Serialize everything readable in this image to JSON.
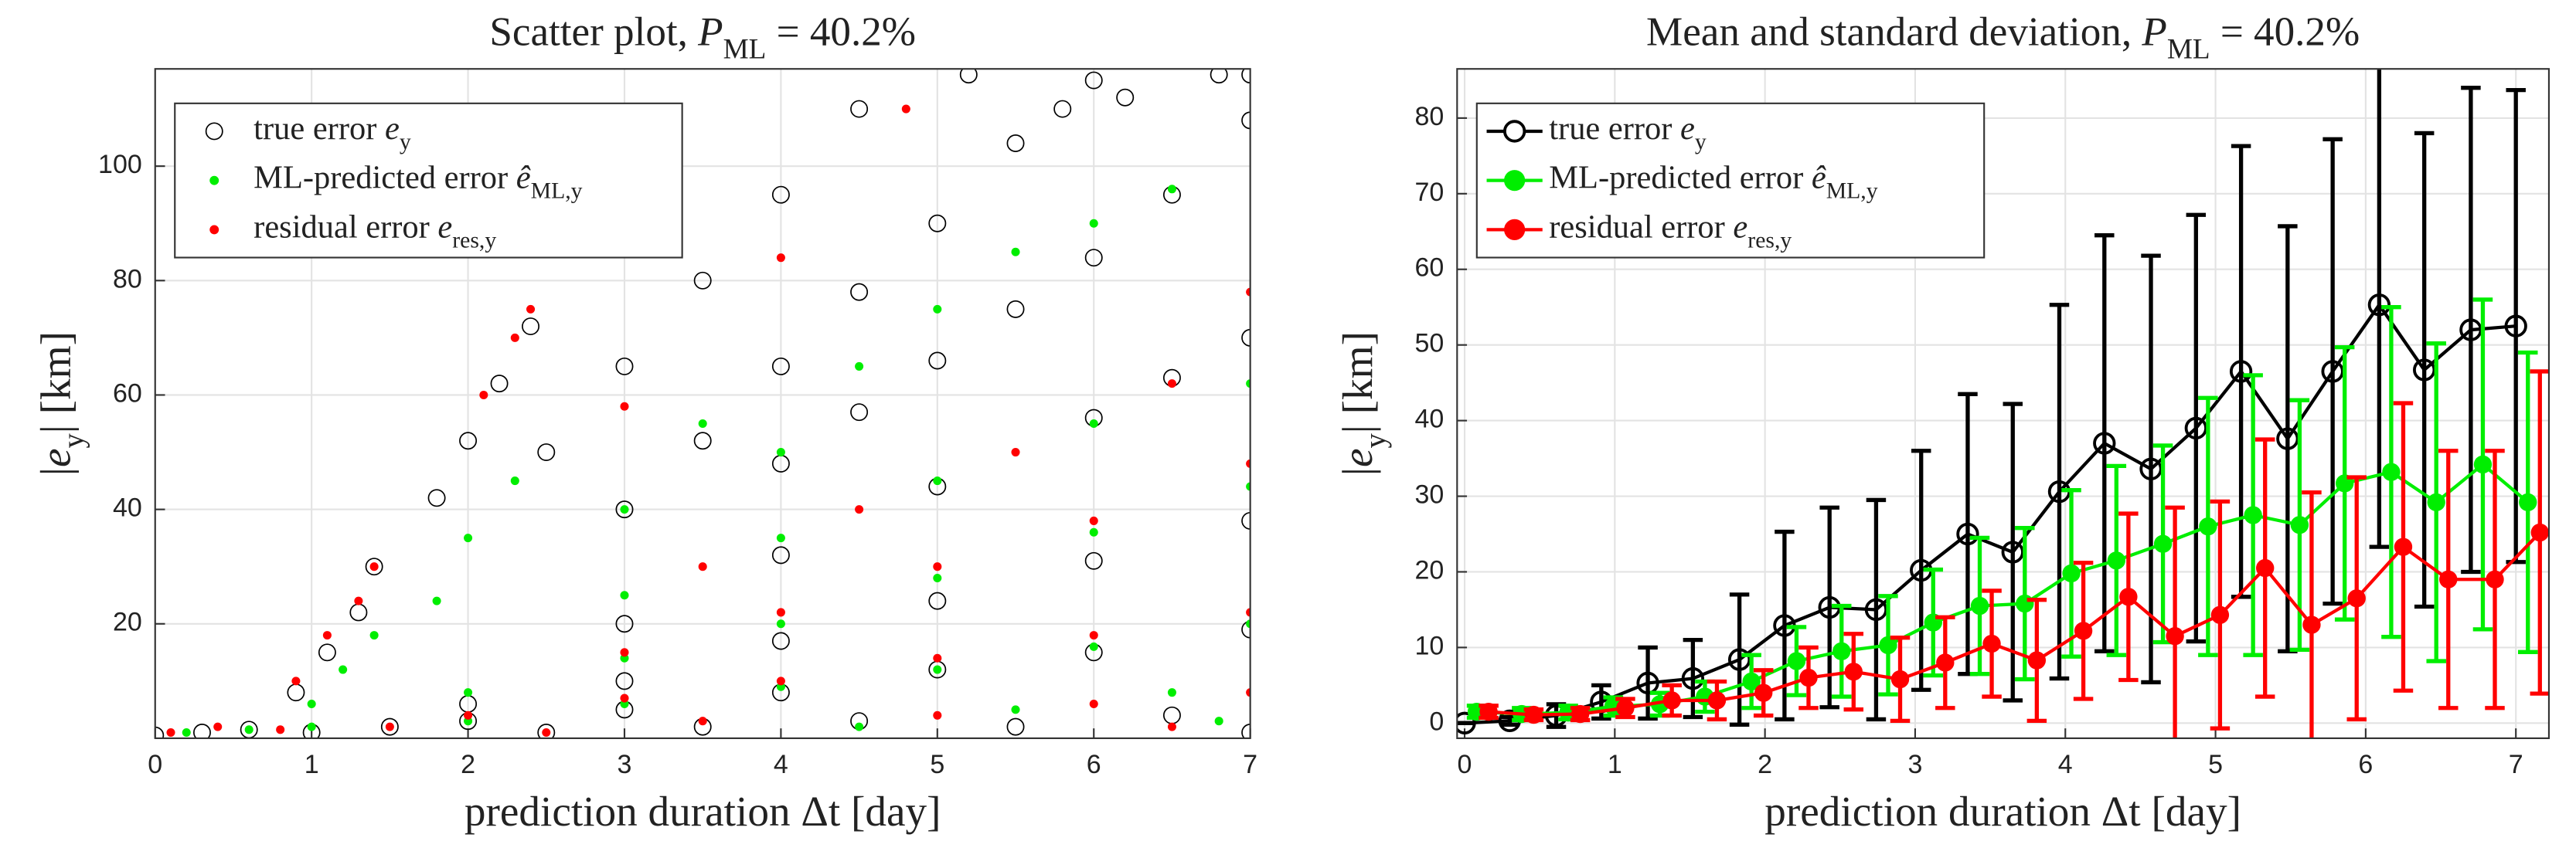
{
  "chart_data": [
    {
      "type": "scatter",
      "title": "Scatter plot, P_{ML} = 40.2%",
      "x_label": "prediction duration Δt [day]",
      "y_label": "|e_{y}| [km]",
      "xlim": [
        0,
        7
      ],
      "ylim": [
        0,
        117
      ],
      "xticks": [
        0,
        1,
        2,
        3,
        4,
        5,
        6,
        7
      ],
      "yticks": [
        20,
        40,
        60,
        80,
        100
      ],
      "grid": true,
      "legend": "upper left",
      "series": [
        {
          "name": "true error e_{y}",
          "color": "#000000",
          "marker": "circle-open",
          "x": [
            1.8,
            2.0,
            2.2,
            2.4,
            2.5,
            3,
            3.5,
            4,
            4.5,
            3,
            3.5,
            4,
            4.5,
            5,
            5.5,
            6,
            4,
            4.5,
            5,
            5.5,
            6,
            6.5,
            7,
            3,
            4,
            5,
            6,
            6.5,
            7,
            2,
            3,
            4,
            5,
            6,
            7,
            1,
            2,
            3,
            4,
            5,
            6,
            7,
            0,
            0.3,
            0.6,
            1.5,
            2.5,
            3.5,
            4.5,
            5.5,
            6.5,
            7,
            0.9,
            1.1,
            1.3,
            1.4,
            5.2,
            5.8,
            6.2,
            6.8,
            7
          ],
          "values": [
            42,
            52,
            62,
            72,
            50,
            65,
            80,
            95,
            110,
            40,
            52,
            65,
            78,
            90,
            104,
            115,
            48,
            57,
            66,
            75,
            84,
            95,
            108,
            20,
            32,
            44,
            56,
            63,
            70,
            6,
            10,
            17,
            24,
            31,
            38,
            1,
            3,
            5,
            8,
            12,
            15,
            19,
            0.5,
            1,
            1.5,
            2,
            1,
            2,
            3,
            2,
            4,
            1,
            8,
            15,
            22,
            30,
            116,
            110,
            112,
            116,
            116
          ]
        },
        {
          "name": "ML-predicted error ê_{ML,y}",
          "color": "#00ee00",
          "marker": "dot",
          "x": [
            1.0,
            1.2,
            1.4,
            1.8,
            2,
            2.3,
            3,
            3.5,
            4,
            4.5,
            5,
            5.5,
            6,
            6.5,
            3,
            4,
            5,
            6,
            7,
            2,
            3,
            4,
            5,
            6,
            7,
            1,
            2,
            3,
            4,
            5,
            6,
            7,
            0.2,
            0.6,
            5.5,
            6.5,
            4.5,
            6.8
          ],
          "values": [
            6,
            12,
            18,
            24,
            35,
            45,
            40,
            55,
            50,
            65,
            75,
            85,
            90,
            96,
            25,
            35,
            45,
            55,
            62,
            8,
            14,
            20,
            28,
            36,
            44,
            2,
            3,
            6,
            9,
            12,
            16,
            20,
            1,
            1.5,
            5,
            8,
            2,
            3
          ]
        },
        {
          "name": "residual error e_{res,y}",
          "color": "#ff0000",
          "marker": "dot",
          "x": [
            0.9,
            1.1,
            1.3,
            1.4,
            2.1,
            2.3,
            2.4,
            3,
            4,
            4.8,
            3.5,
            4.5,
            5.5,
            6.5,
            7,
            3,
            4,
            5,
            6,
            7,
            2,
            3,
            4,
            5,
            6,
            7,
            0.1,
            0.4,
            0.8,
            1.5,
            2.5,
            3.5,
            5,
            6,
            7,
            6.5
          ],
          "values": [
            10,
            18,
            24,
            30,
            60,
            70,
            75,
            58,
            84,
            110,
            30,
            40,
            50,
            62,
            78,
            15,
            22,
            30,
            38,
            48,
            4,
            7,
            10,
            14,
            18,
            22,
            1,
            2,
            1.5,
            2,
            1,
            3,
            4,
            6,
            8,
            2
          ]
        }
      ]
    },
    {
      "type": "line",
      "title": "Mean and standard deviation, P_{ML} = 40.2%",
      "x_label": "prediction duration Δt [day]",
      "y_label": "|e_{y}| [km]",
      "xlim": [
        -0.05,
        7.22
      ],
      "ylim": [
        -2,
        86.5
      ],
      "xticks": [
        0,
        1,
        2,
        3,
        4,
        5,
        6,
        7
      ],
      "yticks": [
        0,
        10,
        20,
        30,
        40,
        50,
        60,
        70,
        80
      ],
      "grid": true,
      "legend": "upper left",
      "series": [
        {
          "name": "true error e_{y}",
          "color": "#000000",
          "marker": "circle-open",
          "x": [
            0,
            0.3,
            0.61,
            0.91,
            1.22,
            1.52,
            1.83,
            2.13,
            2.43,
            2.74,
            3.04,
            3.35,
            3.65,
            3.96,
            4.26,
            4.57,
            4.87,
            5.17,
            5.48,
            5.78,
            6.09,
            6.39,
            6.7,
            7
          ],
          "values": [
            0,
            0.3,
            1,
            2.8,
            5.3,
            5.9,
            8.4,
            12.9,
            15.3,
            15,
            20.2,
            25,
            22.6,
            30.6,
            37,
            33.6,
            39,
            46.5,
            37.6,
            46.5,
            55.3,
            46.7,
            52,
            52.5
          ],
          "errors": [
            0,
            0.5,
            1.5,
            2.2,
            4.7,
            5.1,
            8.6,
            12.4,
            13.2,
            14.5,
            15.8,
            18.5,
            19.6,
            24.7,
            27.5,
            28.2,
            28.2,
            29.8,
            28.1,
            30.7,
            32,
            31.3,
            32,
            31.2
          ]
        },
        {
          "name": "ML-predicted error ê_{ML,y}",
          "color": "#00ee00",
          "marker": "dot",
          "x": [
            0.08,
            0.38,
            0.69,
            0.99,
            1.3,
            1.6,
            1.91,
            2.21,
            2.51,
            2.82,
            3.12,
            3.43,
            3.73,
            4.04,
            4.34,
            4.65,
            4.95,
            5.25,
            5.56,
            5.86,
            6.17,
            6.47,
            6.78,
            7.08
          ],
          "values": [
            1.5,
            1.2,
            1.4,
            2.2,
            2.5,
            3.5,
            5.5,
            8.2,
            9.5,
            10.3,
            13.3,
            15.5,
            15.8,
            19.8,
            21.5,
            23.7,
            26,
            27.5,
            26.2,
            31.7,
            33.2,
            29.2,
            34.2,
            29.2
          ],
          "errors": [
            0.8,
            0.8,
            0.9,
            1.2,
            1.5,
            2,
            3.5,
            4.5,
            6,
            6.5,
            7,
            9,
            10,
            11,
            12.5,
            13,
            17,
            18.5,
            16.5,
            18,
            21.8,
            21,
            21.8,
            19.8
          ]
        },
        {
          "name": "residual error e_{res,y}",
          "color": "#ff0000",
          "marker": "dot",
          "x": [
            0.16,
            0.46,
            0.77,
            1.07,
            1.38,
            1.68,
            1.99,
            2.29,
            2.59,
            2.9,
            3.2,
            3.51,
            3.81,
            4.12,
            4.42,
            4.73,
            5.03,
            5.33,
            5.64,
            5.94,
            6.25,
            6.55,
            6.86,
            7.16
          ],
          "values": [
            1.5,
            1.1,
            1.2,
            2,
            3,
            3,
            4,
            6,
            6.8,
            5.8,
            8,
            10.5,
            8.3,
            12.2,
            16.7,
            11.5,
            14.3,
            20.5,
            13,
            16.5,
            23.3,
            19,
            19,
            25.2
          ],
          "errors": [
            0.8,
            0.7,
            0.8,
            1.2,
            2,
            2.5,
            3,
            4,
            5,
            5.5,
            6,
            7,
            8,
            9,
            11,
            17,
            15,
            17,
            17.5,
            16,
            19,
            17,
            17,
            21.3
          ]
        }
      ]
    }
  ]
}
